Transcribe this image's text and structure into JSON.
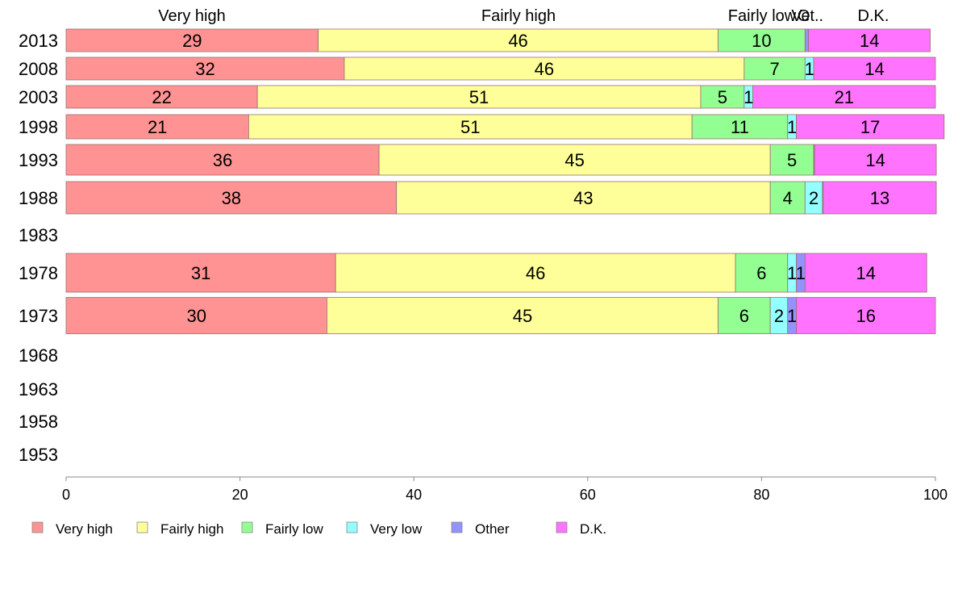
{
  "chart_data": {
    "type": "bar",
    "orientation": "horizontal",
    "stacked": true,
    "categories": [
      "2013",
      "2008",
      "2003",
      "1998",
      "1993",
      "1988",
      "1983",
      "1978",
      "1973",
      "1968",
      "1963",
      "1958",
      "1953"
    ],
    "series": [
      {
        "name": "Very high",
        "color": "#ff9393",
        "values": [
          29,
          32,
          22,
          21,
          36,
          38,
          null,
          31,
          30,
          null,
          null,
          null,
          null
        ]
      },
      {
        "name": "Fairly high",
        "color": "#ffff99",
        "values": [
          46,
          46,
          51,
          51,
          45,
          43,
          null,
          46,
          45,
          null,
          null,
          null,
          null
        ]
      },
      {
        "name": "Fairly low",
        "color": "#93ff93",
        "values": [
          10,
          7,
          5,
          11,
          5,
          4,
          null,
          6,
          6,
          null,
          null,
          null,
          null
        ]
      },
      {
        "name": "Very low",
        "color": "#93ffff",
        "values": [
          0,
          1,
          1,
          1,
          0,
          2,
          null,
          1,
          2,
          null,
          null,
          null,
          null
        ]
      },
      {
        "name": "Other",
        "color": "#9393ff",
        "values": [
          0.4,
          0,
          0,
          0,
          0.1,
          0.1,
          null,
          1,
          1,
          null,
          null,
          null,
          null
        ]
      },
      {
        "name": "D.K.",
        "color": "#ff73ff",
        "values": [
          14,
          14,
          21,
          17,
          14,
          13,
          null,
          14,
          16,
          null,
          null,
          null,
          null
        ]
      }
    ],
    "top_labels": [
      "Very high",
      "Fairly high",
      "Fairly low",
      "Ve",
      "Ot..",
      "D.K."
    ],
    "xlim": [
      0,
      100
    ],
    "xticks": [
      "0",
      "20",
      "40",
      "60",
      "80",
      "100"
    ],
    "xlabel": "",
    "ylabel": "",
    "grid": false,
    "legend_position": "bottom"
  }
}
